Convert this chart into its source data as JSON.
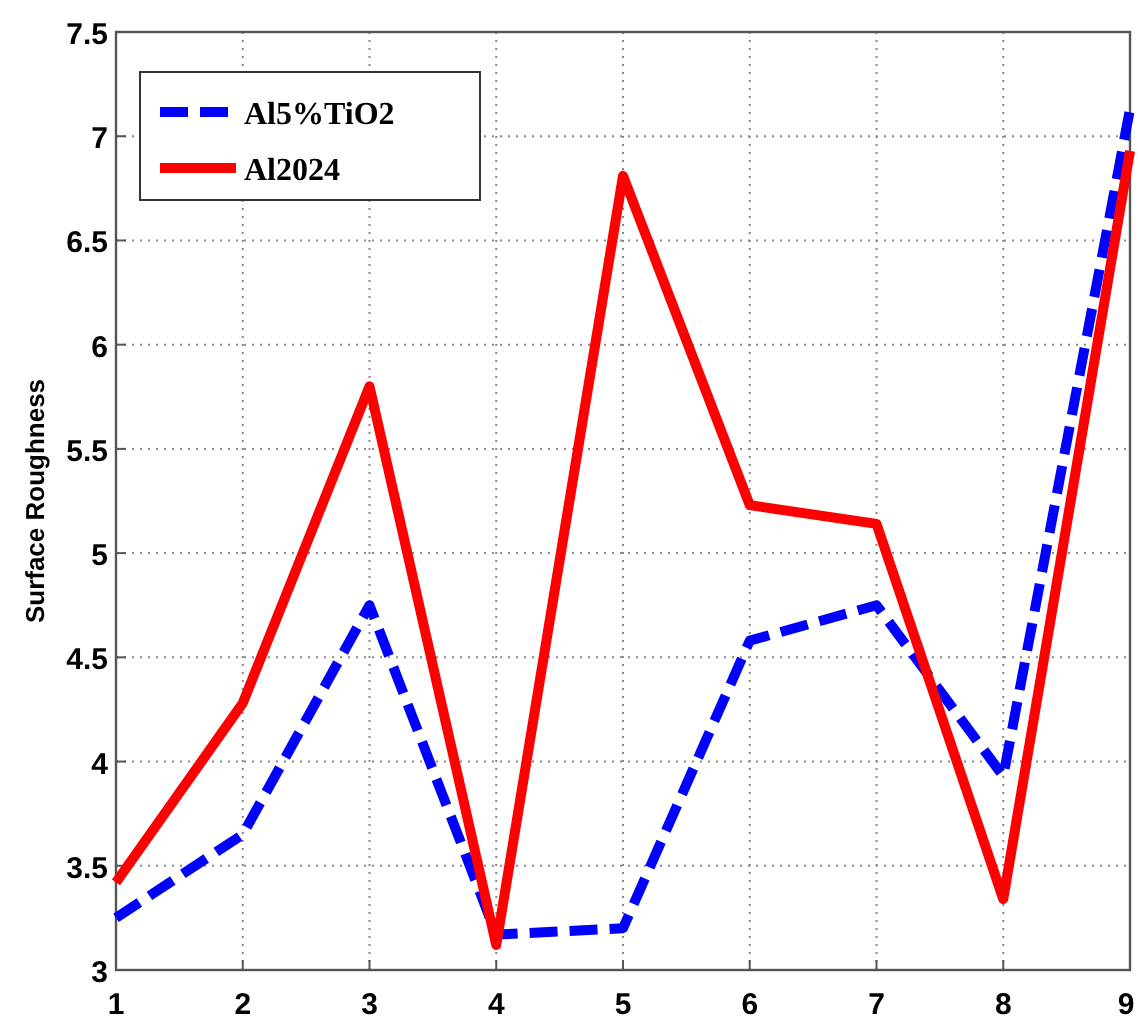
{
  "chart_data": {
    "type": "line",
    "ylabel": "Surface Roughness",
    "x": [
      1,
      2,
      3,
      4,
      5,
      6,
      7,
      8,
      9
    ],
    "series": [
      {
        "name": "Al5%TiO2",
        "color": "#0000ff",
        "line_style": "dashed",
        "values": [
          3.25,
          3.65,
          4.75,
          3.17,
          3.2,
          4.58,
          4.75,
          3.93,
          7.13
        ]
      },
      {
        "name": "Al2024",
        "color": "#ff0000",
        "line_style": "solid",
        "values": [
          3.42,
          4.28,
          5.8,
          3.12,
          6.81,
          5.23,
          5.14,
          3.34,
          6.93
        ]
      }
    ],
    "xlim": [
      1,
      9
    ],
    "xticks": [
      1,
      2,
      3,
      4,
      5,
      6,
      7,
      8,
      9
    ],
    "ylim": [
      3,
      7.5
    ],
    "yticks": [
      3,
      3.5,
      4,
      4.5,
      5,
      5.5,
      6,
      6.5,
      7,
      7.5
    ],
    "grid": true,
    "legend": "top left"
  }
}
